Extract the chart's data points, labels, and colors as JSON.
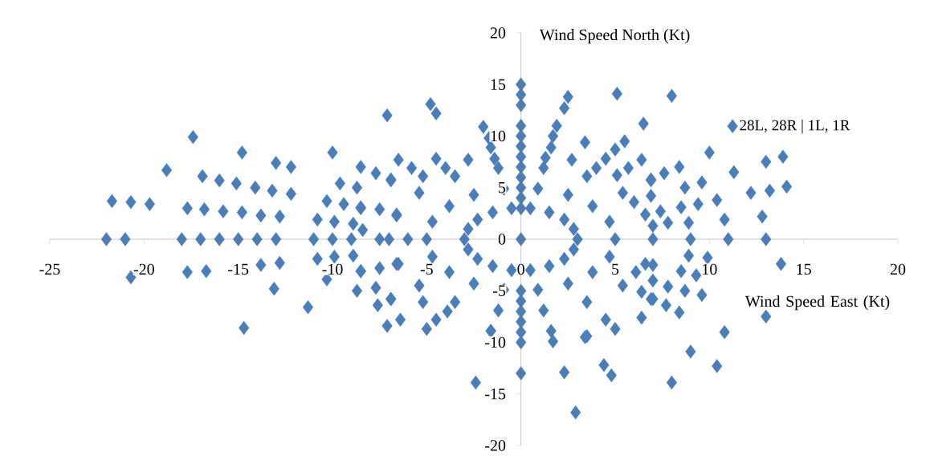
{
  "chart_data": {
    "type": "scatter",
    "xlabel": "Wind Speed East (Kt)",
    "ylabel": "Wind Speed North (Kt)",
    "xlim": [
      -25,
      20
    ],
    "ylim": [
      -20,
      20
    ],
    "xticks": [
      -25,
      -20,
      -15,
      -10,
      -5,
      0,
      5,
      10,
      15,
      20
    ],
    "yticks": [
      -20,
      -15,
      -10,
      -5,
      0,
      5,
      10,
      15,
      20
    ],
    "legend": "right",
    "marker": "diamond",
    "series": [
      {
        "name": "28L, 28R | 1L, 1R",
        "color": "#4a7ebb",
        "x": [
          0,
          3,
          2.8,
          2.3,
          1.5,
          0.5,
          -0.5,
          -1.5,
          -2.3,
          -2.8,
          -3,
          -2.8,
          -2.3,
          -1.5,
          -0.5,
          0.5,
          1.5,
          2.3,
          2.8,
          5,
          4.7,
          3.8,
          2.5,
          0.9,
          -0.9,
          -2.5,
          -3.8,
          -4.7,
          -5,
          -4.7,
          -3.8,
          -2.5,
          -0.9,
          0.9,
          2.5,
          3.8,
          4.7,
          7,
          6.6,
          5.4,
          3.5,
          1.2,
          -1.2,
          -3.5,
          -5.4,
          -6.6,
          -7,
          -6.6,
          -5.4,
          -3.5,
          -1.2,
          1.2,
          3.5,
          5.4,
          6.6,
          9,
          8.5,
          6.9,
          4.5,
          1.6,
          -1.6,
          -4.5,
          -6.9,
          -8.5,
          -9,
          -8.5,
          -6.9,
          -4.5,
          -1.6,
          1.6,
          4.5,
          6.9,
          8.5,
          0,
          0,
          0,
          0,
          0,
          0,
          0,
          0,
          0,
          0,
          0,
          0,
          0,
          0,
          0,
          0,
          0,
          0,
          null,
          0,
          11,
          13,
          13.8,
          11.3,
          13,
          13.9,
          14.1,
          12.2,
          13.2,
          12.8,
          10,
          13,
          10.4,
          10.8,
          9,
          8,
          2.9,
          2.3,
          4.4,
          4.8,
          -2.4,
          1.7,
          3.4,
          5,
          -1.6,
          5.1,
          8,
          2.5,
          2.3,
          6.5,
          -7.1,
          -4.8,
          -4.5,
          -2,
          -1.7,
          1.9,
          1.7,
          3.4,
          5.5,
          5,
          -22,
          -21,
          -21.7,
          -20.7,
          -19.7,
          -20.7,
          -18.8,
          -17.4,
          -18,
          -17,
          -16,
          -15,
          -14,
          -13,
          -11,
          -10,
          -17.7,
          -16.8,
          -15.8,
          -14.8,
          -13.8,
          -12.8,
          -17.7,
          -16.7,
          -13.8,
          -12.8,
          -16.9,
          -16,
          -15.1,
          -14.1,
          -13.2,
          -12.2,
          -14.8,
          -13,
          -12.2,
          -13.1,
          -14.7,
          -11.3,
          -10,
          -10.8,
          -10.3,
          -10.8,
          -10.3,
          -8.7,
          -9.6,
          -8.5,
          -9.9,
          -9.9,
          -9.4,
          -8.7,
          -8.9,
          -8.9,
          -8.5,
          -8.5,
          8.4,
          8.7,
          9.6,
          9.4,
          10.4,
          8.9,
          10.8,
          8.9,
          9.9,
          9.3,
          8.7,
          9.6,
          8.4,
          6.4,
          5.7,
          7.6,
          6.9,
          6.9,
          6,
          7.4,
          7,
          7.8,
          7,
          6.1,
          7,
          7.8,
          6.4,
          7,
          7.7,
          6.4,
          3.5,
          -7.7,
          -6.9,
          -7.6,
          -6.4,
          -7.1,
          -5,
          -5.2,
          -3.9,
          -6.5,
          -7.5,
          -7.7,
          -6.9,
          -6.5,
          -5.8,
          -5.2,
          -4,
          -2.8,
          -1.4,
          -7.5,
          -6.6,
          -8.4,
          -7.5,
          -6,
          1.3,
          2.7,
          4,
          5.1
        ],
        "values": [
          0,
          0,
          1,
          1.9,
          2.6,
          3,
          3,
          2.6,
          1.9,
          1,
          0,
          -1,
          -1.9,
          -2.6,
          -3,
          -3,
          -2.6,
          -1.9,
          -1,
          0,
          1.7,
          3.2,
          4.3,
          4.9,
          4.9,
          4.3,
          3.2,
          1.7,
          0,
          -1.7,
          -3.2,
          -4.3,
          -4.9,
          -4.9,
          -4.3,
          -3.2,
          -1.7,
          0,
          2.4,
          4.5,
          6.1,
          6.9,
          6.9,
          6.1,
          4.5,
          2.4,
          0,
          -2.4,
          -4.5,
          -6.1,
          -6.9,
          -6.9,
          -6.1,
          -4.5,
          -2.4,
          0,
          3.1,
          5.8,
          7.8,
          8.9,
          8.9,
          7.8,
          5.8,
          3.1,
          0,
          -3.1,
          -5.8,
          -7.8,
          -8.9,
          -8.9,
          -7.8,
          -5.8,
          -3.1,
          5,
          6,
          7,
          8,
          9,
          10,
          11,
          13,
          14,
          15,
          -5,
          -6,
          -7,
          -8,
          -9,
          -10,
          -13,
          3,
          null,
          4,
          0,
          0,
          -2.4,
          6.5,
          7.5,
          8,
          5.1,
          4.5,
          4.7,
          2.2,
          8.4,
          -7.5,
          -12.3,
          -9,
          -10.9,
          -13.9,
          -16.8,
          -12.9,
          -12.2,
          -13.2,
          -13.9,
          -9.9,
          -9.5,
          -8.7,
          -8.9,
          14.1,
          13.9,
          13.8,
          12.7,
          11.2,
          12,
          13.1,
          12.2,
          10.9,
          9.8,
          11,
          10,
          9.4,
          9.5,
          8.7,
          0,
          0,
          3.7,
          3.6,
          3.4,
          -3.7,
          6.7,
          9.9,
          0,
          0,
          0,
          0,
          0,
          0,
          0,
          0,
          3,
          2.9,
          2.7,
          2.6,
          2.3,
          2.2,
          -3.2,
          -3.1,
          -2.5,
          -2.3,
          6.1,
          5.7,
          5.4,
          5,
          4.7,
          4.4,
          8.4,
          7.4,
          7,
          -4.8,
          -8.6,
          -6.6,
          8.4,
          1.9,
          3.7,
          -1.9,
          -3.9,
          -5,
          5.4,
          7,
          1.7,
          -1.7,
          3.4,
          5,
          1.5,
          -1.6,
          3,
          -3.1,
          7,
          5,
          5.5,
          3.4,
          3.8,
          1.6,
          1.9,
          -1.6,
          -1.8,
          -3.5,
          -5,
          -5.4,
          -7.1,
          7.7,
          6.9,
          6.4,
          5.7,
          4.2,
          3.6,
          2.7,
          1.3,
          1.6,
          -2.5,
          -3.2,
          -4,
          -4.6,
          -5.1,
          -5.8,
          -6.4,
          -7.6,
          -9.4,
          -4.7,
          -5.8,
          -6.4,
          -7.8,
          -8.4,
          -8.7,
          -6.1,
          -7,
          -2.4,
          -2.8,
          6.4,
          5.7,
          7.7,
          6.9,
          6.1,
          6.9,
          7.7,
          7.8,
          2.9,
          2.3,
          0.9,
          0,
          0,
          7.9,
          7.7,
          6.9,
          6.2
        ]
      }
    ]
  }
}
